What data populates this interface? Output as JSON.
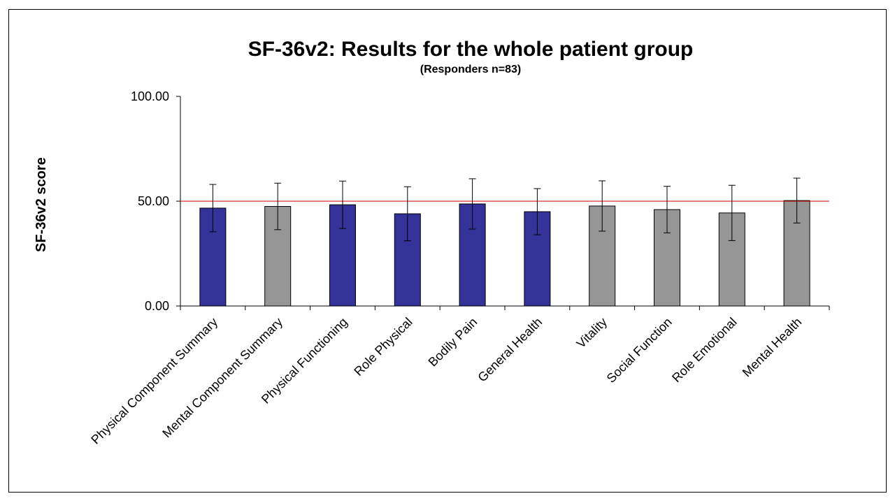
{
  "chart_data": {
    "type": "bar",
    "title": "SF-36v2: Results for the whole patient group",
    "subtitle": "(Responders n=83)",
    "ylabel": "SF-36v2 score",
    "xlabel": "",
    "ylim": [
      0,
      100
    ],
    "yticks": [
      "0.00",
      "50.00",
      "100.00"
    ],
    "ytick_values": [
      0,
      50,
      100
    ],
    "reference_line": {
      "value": 50,
      "color": "#cc0000"
    },
    "grid": false,
    "legend": "none",
    "categories": [
      "Physical Component Summary",
      "Mental Component Summary",
      "Physical Functioning",
      "Role Physical",
      "Bodily Pain",
      "General Health",
      "Vitality",
      "Social Function",
      "Role Emotional",
      "Mental Health"
    ],
    "values": [
      46.7,
      47.5,
      48.3,
      44.0,
      48.7,
      45.0,
      47.7,
      46.0,
      44.4,
      50.3
    ],
    "error_bars": [
      11.3,
      11.1,
      11.3,
      12.9,
      12.0,
      11.0,
      12.0,
      11.1,
      13.2,
      10.7
    ],
    "bar_colors": [
      "#333399",
      "#969696",
      "#333399",
      "#333399",
      "#333399",
      "#333399",
      "#969696",
      "#969696",
      "#969696",
      "#969696"
    ]
  }
}
